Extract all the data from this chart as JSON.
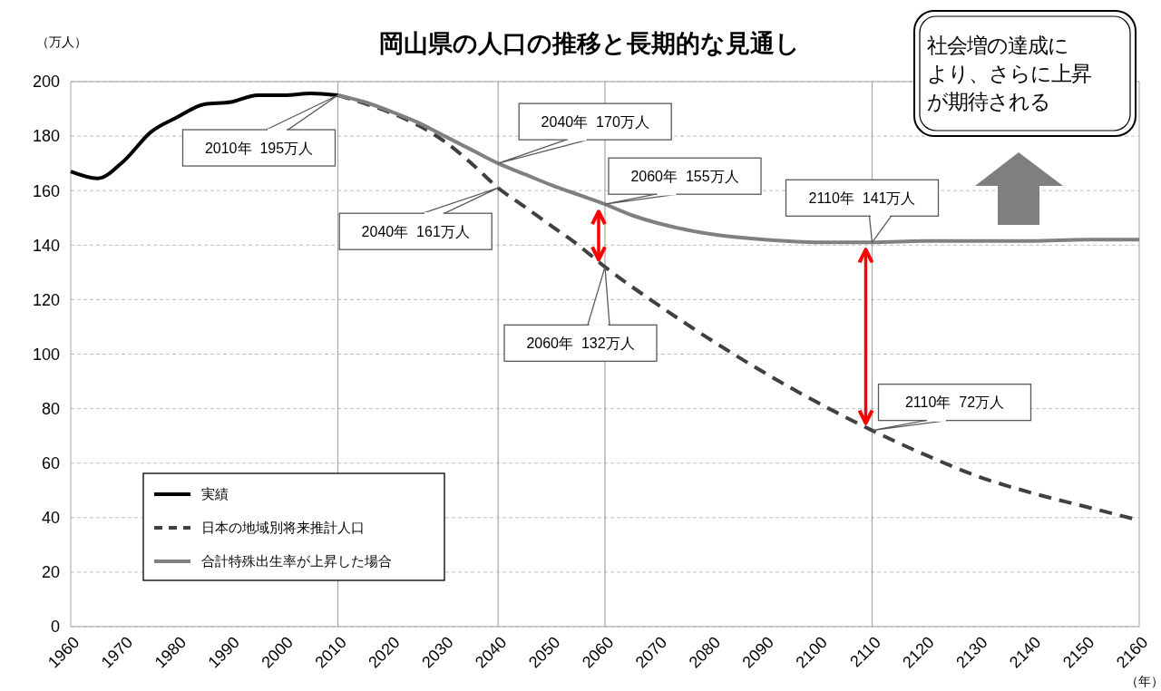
{
  "chart_data": {
    "type": "line",
    "title": "岡山県の人口の推移と長期的な見通し",
    "xlabel": "（年）",
    "ylabel": "（万人）",
    "xlim": [
      1960,
      2160
    ],
    "xticks": [
      1960,
      1970,
      1980,
      1990,
      2000,
      2010,
      2020,
      2030,
      2040,
      2050,
      2060,
      2070,
      2080,
      2090,
      2100,
      2110,
      2120,
      2130,
      2140,
      2150,
      2160
    ],
    "ylim": [
      0,
      200
    ],
    "yticks": [
      0,
      20,
      40,
      60,
      80,
      100,
      120,
      140,
      160,
      180,
      200
    ],
    "grid": "y",
    "legend": "bottom left",
    "marker": "none",
    "series": [
      {
        "name": "実績",
        "color": "#000000",
        "line_style": "solid",
        "x": [
          1960,
          1965,
          1970,
          1975,
          1980,
          1985,
          1990,
          1995,
          2000,
          2005,
          2010
        ],
        "values": [
          167,
          164.5,
          171,
          181.5,
          187,
          191.7,
          192.5,
          195,
          195,
          195.7,
          195
        ]
      },
      {
        "name": "日本の地域別将来推計人口",
        "color": "#404040",
        "line_style": "dashed",
        "x": [
          2010,
          2015,
          2020,
          2025,
          2030,
          2035,
          2040,
          2045,
          2050,
          2055,
          2060,
          2070,
          2080,
          2090,
          2100,
          2110,
          2120,
          2130,
          2140,
          2150,
          2160
        ],
        "values": [
          195,
          192,
          188.5,
          184,
          178,
          170,
          161,
          154,
          147,
          140,
          132,
          118,
          105,
          93,
          82,
          72,
          63,
          55,
          49,
          44,
          39
        ]
      },
      {
        "name": "合計特殊出生率が上昇した場合",
        "color": "#808080",
        "line_style": "solid",
        "x": [
          2010,
          2015,
          2020,
          2025,
          2030,
          2035,
          2040,
          2045,
          2050,
          2055,
          2060,
          2065,
          2070,
          2080,
          2090,
          2100,
          2110,
          2120,
          2130,
          2140,
          2150,
          2160
        ],
        "values": [
          195,
          192.5,
          189,
          185,
          180,
          175,
          170,
          166,
          162,
          158.5,
          155,
          151,
          148,
          144,
          142,
          141,
          141,
          141.5,
          141.5,
          141.5,
          142,
          142
        ]
      }
    ],
    "ref_lines": [
      {
        "axis": "x",
        "value": 2010,
        "color": "#a6a6a6"
      },
      {
        "axis": "x",
        "value": 2040,
        "color": "#a6a6a6"
      },
      {
        "axis": "x",
        "value": 2060,
        "color": "#a6a6a6"
      },
      {
        "axis": "x",
        "value": 2110,
        "color": "#a6a6a6"
      }
    ],
    "annotations": [
      {
        "text": "2010年  195万人",
        "x": 2010,
        "y": 195
      },
      {
        "text": "2040年  170万人",
        "x": 2040,
        "y": 170
      },
      {
        "text": "2040年  161万人",
        "x": 2040,
        "y": 161
      },
      {
        "text": "2060年  155万人",
        "x": 2060,
        "y": 155
      },
      {
        "text": "2060年  132万人",
        "x": 2060,
        "y": 132
      },
      {
        "text": "2110年  141万人",
        "x": 2110,
        "y": 141
      },
      {
        "text": "2110年  72万人",
        "x": 2110,
        "y": 72
      },
      "社会増の達成により、さらに上昇が期待される"
    ]
  }
}
